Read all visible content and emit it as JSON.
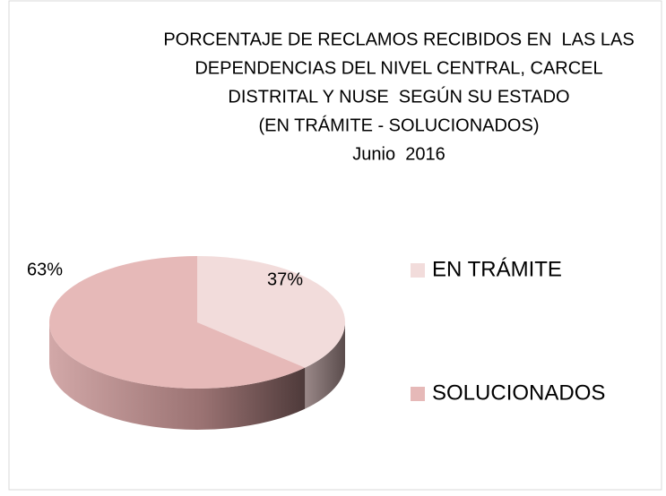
{
  "chart_data": {
    "type": "pie",
    "title": [
      "PORCENTAJE DE RECLAMOS RECIBIDOS EN  LAS LAS",
      "DEPENDENCIAS DEL NIVEL CENTRAL, CARCEL",
      "DISTRITAL Y NUSE  SEGÚN SU ESTADO",
      "(EN TRÁMITE - SOLUCIONADOS)",
      "Junio  2016"
    ],
    "categories": [
      "EN TRÁMITE",
      "SOLUCIONADOS"
    ],
    "values": [
      37,
      63
    ],
    "value_labels": [
      "37%",
      "63%"
    ],
    "colors": [
      "#f2dcdb",
      "#e6b9b8"
    ],
    "legend": "right"
  }
}
